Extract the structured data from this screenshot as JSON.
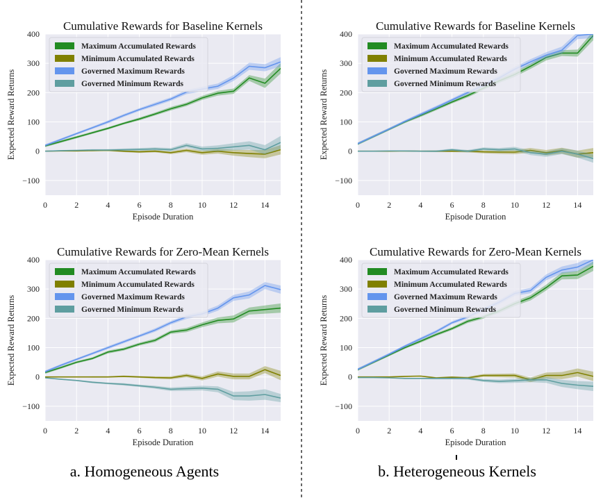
{
  "figure": {
    "caption_a": "a. Homogeneous Agents",
    "caption_b": "b.  Heterogeneous Kernels",
    "colors": {
      "max_acc": "#228b22",
      "min_acc": "#808000",
      "gov_max": "#6495ed",
      "gov_min": "#5f9ea0",
      "plot_bg": "#eaeaf2",
      "grid": "#ffffff"
    }
  },
  "chart_data": [
    {
      "type": "line",
      "panel": "a",
      "title": "Cumulative Rewards for Baseline Kernels",
      "xlabel": "Episode Duration",
      "ylabel": "Expected Reward Returns",
      "xlim": [
        0,
        15
      ],
      "ylim": [
        -150,
        400
      ],
      "xticks": [
        0,
        2,
        4,
        6,
        8,
        10,
        12,
        14
      ],
      "yticks": [
        -100,
        0,
        100,
        200,
        300,
        400
      ],
      "legend_position": "top-left",
      "x": [
        0,
        1,
        2,
        3,
        4,
        5,
        6,
        7,
        8,
        9,
        10,
        11,
        12,
        13,
        14,
        15
      ],
      "series": [
        {
          "name": "Maximum Accumulated Rewards",
          "color_key": "max_acc",
          "values": [
            18,
            33,
            48,
            63,
            78,
            95,
            110,
            127,
            145,
            160,
            182,
            198,
            205,
            250,
            232,
            283
          ],
          "band": [
            4,
            4,
            4,
            4,
            4,
            4,
            5,
            5,
            6,
            6,
            7,
            8,
            9,
            10,
            16,
            18
          ]
        },
        {
          "name": "Minimum Accumulated Rewards",
          "color_key": "min_acc",
          "values": [
            0,
            1,
            1,
            2,
            3,
            0,
            -2,
            0,
            -5,
            3,
            -5,
            0,
            -5,
            -8,
            -10,
            5
          ],
          "band": [
            1,
            1,
            2,
            2,
            3,
            3,
            4,
            4,
            5,
            6,
            7,
            8,
            10,
            12,
            14,
            16
          ]
        },
        {
          "name": "Governed Maximum Rewards",
          "color_key": "gov_max",
          "values": [
            20,
            40,
            60,
            80,
            100,
            122,
            142,
            160,
            178,
            202,
            212,
            222,
            250,
            290,
            285,
            305
          ],
          "band": [
            4,
            4,
            4,
            4,
            5,
            5,
            5,
            6,
            6,
            7,
            8,
            9,
            10,
            12,
            12,
            16
          ]
        },
        {
          "name": "Governed Minimum Rewards",
          "color_key": "gov_min",
          "values": [
            0,
            2,
            3,
            4,
            4,
            5,
            6,
            8,
            5,
            20,
            8,
            10,
            15,
            20,
            5,
            30
          ],
          "band": [
            1,
            2,
            2,
            3,
            3,
            4,
            5,
            5,
            6,
            7,
            8,
            10,
            12,
            14,
            16,
            22
          ]
        }
      ]
    },
    {
      "type": "line",
      "panel": "b",
      "title": "Cumulative Rewards for Baseline Kernels",
      "xlabel": "Episode Duration",
      "ylabel": "Expected Reward Returns",
      "xlim": [
        0,
        15
      ],
      "ylim": [
        -150,
        400
      ],
      "xticks": [
        0,
        2,
        4,
        6,
        8,
        10,
        12,
        14
      ],
      "yticks": [
        -100,
        0,
        100,
        200,
        300,
        400
      ],
      "legend_position": "top-left",
      "x": [
        0,
        1,
        2,
        3,
        4,
        5,
        6,
        7,
        8,
        9,
        10,
        11,
        12,
        13,
        14,
        15
      ],
      "series": [
        {
          "name": "Maximum Accumulated Rewards",
          "color_key": "max_acc",
          "values": [
            25,
            50,
            75,
            100,
            122,
            145,
            168,
            190,
            215,
            240,
            262,
            290,
            320,
            335,
            335,
            395
          ],
          "band": [
            4,
            4,
            4,
            4,
            5,
            5,
            5,
            6,
            6,
            7,
            8,
            9,
            10,
            10,
            12,
            16
          ]
        },
        {
          "name": "Minimum Accumulated Rewards",
          "color_key": "min_acc",
          "values": [
            0,
            0,
            0,
            1,
            0,
            0,
            0,
            0,
            -2,
            -3,
            -3,
            3,
            -5,
            2,
            -10,
            -5
          ],
          "band": [
            1,
            1,
            1,
            2,
            2,
            3,
            3,
            4,
            5,
            6,
            7,
            8,
            9,
            10,
            12,
            16
          ]
        },
        {
          "name": "Governed Maximum Rewards",
          "color_key": "gov_max",
          "values": [
            26,
            51,
            76,
            102,
            126,
            150,
            175,
            200,
            225,
            250,
            280,
            305,
            328,
            345,
            395,
            400
          ],
          "band": [
            4,
            4,
            4,
            4,
            5,
            5,
            5,
            6,
            6,
            7,
            8,
            9,
            10,
            12,
            12,
            14
          ]
        },
        {
          "name": "Governed Minimum Rewards",
          "color_key": "gov_min",
          "values": [
            0,
            0,
            1,
            1,
            0,
            0,
            5,
            0,
            8,
            5,
            8,
            -5,
            -10,
            0,
            -10,
            -25
          ],
          "band": [
            1,
            1,
            1,
            2,
            2,
            3,
            4,
            4,
            5,
            6,
            7,
            8,
            9,
            10,
            12,
            14
          ]
        }
      ]
    },
    {
      "type": "line",
      "panel": "a",
      "title": "Cumulative Rewards for Zero-Mean Kernels",
      "xlabel": "Episode Duration",
      "ylabel": "Expected Reward Returns",
      "xlim": [
        0,
        15
      ],
      "ylim": [
        -150,
        400
      ],
      "xticks": [
        0,
        2,
        4,
        6,
        8,
        10,
        12,
        14
      ],
      "yticks": [
        -100,
        0,
        100,
        200,
        300,
        400
      ],
      "legend_position": "top-left",
      "x": [
        0,
        1,
        2,
        3,
        4,
        5,
        6,
        7,
        8,
        9,
        10,
        11,
        12,
        13,
        14,
        15
      ],
      "series": [
        {
          "name": "Maximum Accumulated Rewards",
          "color_key": "max_acc",
          "values": [
            15,
            32,
            50,
            63,
            85,
            95,
            112,
            125,
            153,
            160,
            178,
            193,
            198,
            225,
            230,
            235
          ],
          "band": [
            4,
            4,
            4,
            4,
            5,
            5,
            5,
            6,
            6,
            7,
            8,
            10,
            12,
            12,
            14,
            16
          ]
        },
        {
          "name": "Minimum Accumulated Rewards",
          "color_key": "min_acc",
          "values": [
            0,
            0,
            0,
            0,
            0,
            2,
            0,
            -2,
            -3,
            5,
            -5,
            10,
            2,
            2,
            25,
            5
          ],
          "band": [
            1,
            1,
            1,
            2,
            2,
            3,
            3,
            4,
            5,
            6,
            7,
            9,
            10,
            10,
            12,
            16
          ]
        },
        {
          "name": "Governed Maximum Rewards",
          "color_key": "gov_max",
          "values": [
            18,
            40,
            60,
            80,
            100,
            120,
            140,
            160,
            185,
            205,
            215,
            235,
            270,
            280,
            312,
            298
          ],
          "band": [
            4,
            4,
            4,
            4,
            5,
            5,
            5,
            6,
            6,
            7,
            8,
            9,
            10,
            12,
            12,
            14
          ]
        },
        {
          "name": "Governed Minimum Rewards",
          "color_key": "gov_min",
          "values": [
            -3,
            -8,
            -12,
            -18,
            -22,
            -25,
            -30,
            -35,
            -42,
            -40,
            -38,
            -42,
            -65,
            -65,
            -60,
            -72
          ],
          "band": [
            1,
            2,
            2,
            3,
            3,
            4,
            4,
            5,
            6,
            7,
            8,
            10,
            14,
            16,
            18,
            14
          ]
        }
      ]
    },
    {
      "type": "line",
      "panel": "b",
      "title": "Cumulative Rewards for Zero-Mean Kernels",
      "xlabel": "Episode Duration",
      "ylabel": "Expected Reward Returns",
      "xlim": [
        0,
        15
      ],
      "ylim": [
        -150,
        400
      ],
      "xticks": [
        0,
        2,
        4,
        6,
        8,
        10,
        12,
        14
      ],
      "yticks": [
        -100,
        0,
        100,
        200,
        300,
        400
      ],
      "legend_position": "top-left",
      "x": [
        0,
        1,
        2,
        3,
        4,
        5,
        6,
        7,
        8,
        9,
        10,
        11,
        12,
        13,
        14,
        15
      ],
      "series": [
        {
          "name": "Maximum Accumulated Rewards",
          "color_key": "max_acc",
          "values": [
            25,
            50,
            75,
            100,
            122,
            145,
            165,
            190,
            205,
            225,
            250,
            270,
            305,
            345,
            348,
            378
          ],
          "band": [
            4,
            4,
            4,
            4,
            5,
            5,
            5,
            6,
            6,
            7,
            8,
            9,
            10,
            12,
            14,
            16
          ]
        },
        {
          "name": "Minimum Accumulated Rewards",
          "color_key": "min_acc",
          "values": [
            0,
            0,
            0,
            2,
            3,
            -3,
            -1,
            -3,
            5,
            5,
            5,
            -10,
            5,
            5,
            15,
            2
          ],
          "band": [
            1,
            1,
            1,
            2,
            2,
            3,
            3,
            4,
            5,
            6,
            7,
            8,
            10,
            12,
            14,
            16
          ]
        },
        {
          "name": "Governed Maximum Rewards",
          "color_key": "gov_max",
          "values": [
            26,
            52,
            78,
            105,
            130,
            155,
            185,
            205,
            230,
            255,
            285,
            295,
            340,
            365,
            375,
            400
          ],
          "band": [
            4,
            4,
            4,
            4,
            5,
            5,
            5,
            6,
            6,
            7,
            8,
            9,
            10,
            12,
            14,
            14
          ]
        },
        {
          "name": "Governed Minimum Rewards",
          "color_key": "gov_min",
          "values": [
            -2,
            -2,
            -3,
            -5,
            -5,
            -5,
            -5,
            -5,
            -12,
            -15,
            -13,
            -10,
            -10,
            -22,
            -28,
            -32
          ],
          "band": [
            1,
            1,
            1,
            2,
            2,
            3,
            3,
            4,
            5,
            6,
            7,
            8,
            10,
            12,
            14,
            16
          ]
        }
      ]
    }
  ]
}
